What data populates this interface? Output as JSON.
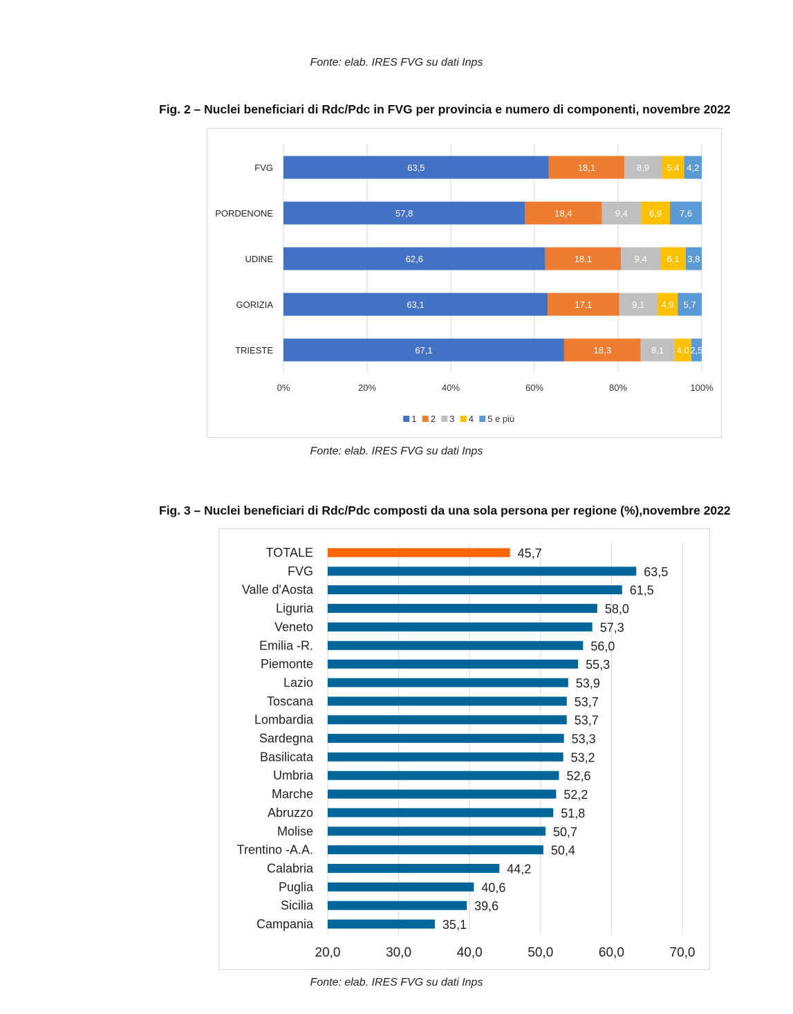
{
  "sources": {
    "top": "Fonte: elab. IRES FVG su dati Inps",
    "fig2": "Fonte: elab. IRES FVG su dati Inps",
    "fig3": "Fonte: elab. IRES FVG su dati Inps"
  },
  "chart_data": [
    {
      "type": "bar",
      "orientation": "horizontal",
      "stacked": "percent",
      "title": "Fig. 2 – Nuclei beneficiari di Rdc/Pdc in FVG per provincia e numero di componenti, novembre 2022",
      "categories": [
        "FVG",
        "PORDENONE",
        "UDINE",
        "GORIZIA",
        "TRIESTE"
      ],
      "series": [
        {
          "name": "1",
          "color": "#4472C4",
          "values": [
            63.5,
            57.8,
            62.6,
            63.1,
            67.1
          ],
          "labels": [
            "63,5",
            "57,8",
            "62,6",
            "63,1",
            "67,1"
          ]
        },
        {
          "name": "2",
          "color": "#ED7D31",
          "values": [
            18.1,
            18.4,
            18.1,
            17.1,
            18.3
          ],
          "labels": [
            "18,1",
            "18,4",
            "18,1",
            "17,1",
            "18,3"
          ]
        },
        {
          "name": "3",
          "color": "#BFBFBF",
          "values": [
            8.9,
            9.4,
            9.4,
            9.1,
            8.1
          ],
          "labels": [
            "8,9",
            "9,4",
            "9,4",
            "9,1",
            "8,1"
          ]
        },
        {
          "name": "4",
          "color": "#FFC000",
          "values": [
            5.4,
            6.9,
            6.1,
            4.9,
            4.0
          ],
          "labels": [
            "5,4",
            "6,9",
            "6,1",
            "4,9",
            "4,0"
          ]
        },
        {
          "name": "5 e più",
          "color": "#5B9BD5",
          "values": [
            4.2,
            7.6,
            3.8,
            5.7,
            2.5
          ],
          "labels": [
            "4,2",
            "7,6",
            "3,8",
            "5,7",
            "2,5"
          ]
        }
      ],
      "xticks": [
        "0%",
        "20%",
        "40%",
        "60%",
        "80%",
        "100%"
      ],
      "xlim": [
        0,
        100
      ],
      "grid": true,
      "legend": "bottom"
    },
    {
      "type": "bar",
      "orientation": "horizontal",
      "title": "Fig. 3 – Nuclei beneficiari di Rdc/Pdc composti da una sola persona per regione (%),novembre 2022",
      "categories": [
        "TOTALE",
        "FVG",
        "Valle d'Aosta",
        "Liguria",
        "Veneto",
        "Emilia -R.",
        "Piemonte",
        "Lazio",
        "Toscana",
        "Lombardia",
        "Sardegna",
        "Basilicata",
        "Umbria",
        "Marche",
        "Abruzzo",
        "Molise",
        "Trentino -A.A.",
        "Calabria",
        "Puglia",
        "Sicilia",
        "Campania"
      ],
      "values": [
        45.7,
        63.5,
        61.5,
        58.0,
        57.3,
        56.0,
        55.3,
        53.9,
        53.7,
        53.7,
        53.3,
        53.2,
        52.6,
        52.2,
        51.8,
        50.7,
        50.4,
        44.2,
        40.6,
        39.6,
        35.1
      ],
      "labels": [
        "45,7",
        "63,5",
        "61,5",
        "58,0",
        "57,3",
        "56,0",
        "55,3",
        "53,9",
        "53,7",
        "53,7",
        "53,3",
        "53,2",
        "52,6",
        "52,2",
        "51,8",
        "50,7",
        "50,4",
        "44,2",
        "40,6",
        "39,6",
        "35,1"
      ],
      "colors": {
        "highlight": "#FF6600",
        "bar": "#006699"
      },
      "highlight_index": 0,
      "xticks": [
        "20,0",
        "30,0",
        "40,0",
        "50,0",
        "60,0",
        "70,0"
      ],
      "xlim": [
        20,
        70
      ],
      "grid": true,
      "legend": "none"
    }
  ]
}
